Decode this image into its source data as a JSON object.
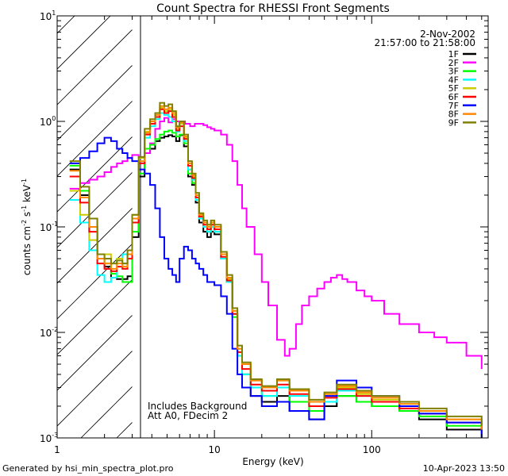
{
  "chart_data": {
    "type": "line",
    "title": "Count Spectra for RHESSI Front Segments",
    "xlabel": "Energy (keV)",
    "ylabel_parts": {
      "prefix": "counts cm",
      "exp1": "-2",
      "mid1": " s",
      "exp2": "-1",
      "mid2": " keV",
      "exp3": "-1"
    },
    "xscale": "log",
    "yscale": "log",
    "xlim": [
      1,
      550
    ],
    "ylim": [
      0.001,
      10
    ],
    "x_tick_labels": [
      {
        "value": 1,
        "label": "1"
      },
      {
        "value": 10,
        "label": "10"
      },
      {
        "value": 100,
        "label": "100"
      }
    ],
    "y_tick_labels": [
      {
        "value": 0.001,
        "base": "10",
        "exp": "-3"
      },
      {
        "value": 0.01,
        "base": "10",
        "exp": "-2"
      },
      {
        "value": 0.1,
        "base": "10",
        "exp": "-1"
      },
      {
        "value": 1,
        "base": "10",
        "exp": "0"
      },
      {
        "value": 10,
        "base": "10",
        "exp": "1"
      }
    ],
    "excluded_region": [
      1,
      3
    ],
    "date": "2-Nov-2002",
    "time_range": "21:57:00 to 21:58:00",
    "annotations": [
      "Includes Background",
      "Att A0, FDecim 2"
    ],
    "footer_left": "Generated by hsi_min_spectra_plot.pro",
    "footer_right": "10-Apr-2023 13:50",
    "series": [
      {
        "name": "1F",
        "color": "#000000",
        "x": [
          1.2,
          1.4,
          1.6,
          1.8,
          2.0,
          2.2,
          2.4,
          2.6,
          2.8,
          3.0,
          3.3,
          3.6,
          3.9,
          4.2,
          4.5,
          4.8,
          5.1,
          5.4,
          5.7,
          6.0,
          6.4,
          6.8,
          7.2,
          7.6,
          8.0,
          8.5,
          9.0,
          9.5,
          10,
          11,
          12,
          13,
          14,
          15,
          17,
          20,
          25,
          30,
          40,
          50,
          60,
          80,
          100,
          150,
          200,
          300,
          500
        ],
        "y": [
          0.35,
          0.2,
          0.1,
          0.05,
          0.042,
          0.033,
          0.032,
          0.032,
          0.034,
          0.08,
          0.3,
          0.5,
          0.55,
          0.65,
          0.7,
          0.72,
          0.74,
          0.72,
          0.65,
          0.74,
          0.58,
          0.3,
          0.25,
          0.17,
          0.11,
          0.09,
          0.08,
          0.09,
          0.085,
          0.05,
          0.03,
          0.015,
          0.006,
          0.004,
          0.0025,
          0.0022,
          0.0025,
          0.0018,
          0.0015,
          0.002,
          0.0025,
          0.0022,
          0.002,
          0.0018,
          0.0015,
          0.0012,
          0.001
        ]
      },
      {
        "name": "2F",
        "color": "#ff00ff",
        "x": [
          1.2,
          1.4,
          1.6,
          1.8,
          2.0,
          2.2,
          2.4,
          2.6,
          2.8,
          3.0,
          3.3,
          3.6,
          3.9,
          4.2,
          4.5,
          4.8,
          5.1,
          5.4,
          5.7,
          6.0,
          6.5,
          7.0,
          7.5,
          8.0,
          8.5,
          9.0,
          9.5,
          10,
          11,
          12,
          13,
          14,
          15,
          16,
          18,
          20,
          22,
          25,
          28,
          30,
          33,
          36,
          40,
          45,
          50,
          55,
          60,
          65,
          70,
          80,
          90,
          100,
          120,
          150,
          200,
          250,
          300,
          400,
          500
        ],
        "y": [
          0.23,
          0.26,
          0.28,
          0.3,
          0.33,
          0.37,
          0.4,
          0.42,
          0.45,
          0.48,
          0.46,
          0.5,
          0.62,
          0.85,
          1.0,
          1.08,
          0.98,
          1.05,
          1.0,
          1.0,
          0.95,
          0.9,
          0.95,
          0.95,
          0.92,
          0.88,
          0.85,
          0.82,
          0.75,
          0.6,
          0.42,
          0.25,
          0.15,
          0.1,
          0.055,
          0.03,
          0.018,
          0.0085,
          0.006,
          0.007,
          0.012,
          0.018,
          0.022,
          0.026,
          0.03,
          0.033,
          0.035,
          0.032,
          0.03,
          0.025,
          0.022,
          0.02,
          0.015,
          0.012,
          0.01,
          0.009,
          0.008,
          0.006,
          0.0045
        ]
      },
      {
        "name": "3F",
        "color": "#00ff00",
        "x": [
          1.2,
          1.4,
          1.6,
          1.8,
          2.0,
          2.2,
          2.4,
          2.6,
          2.8,
          3.0,
          3.3,
          3.6,
          3.9,
          4.2,
          4.5,
          4.8,
          5.1,
          5.4,
          5.7,
          6.0,
          6.4,
          6.8,
          7.2,
          7.6,
          8.0,
          8.5,
          9.0,
          9.5,
          10,
          11,
          12,
          13,
          14,
          15,
          17,
          20,
          25,
          30,
          40,
          50,
          60,
          80,
          100,
          150,
          200,
          300,
          500
        ],
        "y": [
          0.38,
          0.22,
          0.12,
          0.055,
          0.045,
          0.036,
          0.034,
          0.03,
          0.03,
          0.09,
          0.32,
          0.55,
          0.6,
          0.68,
          0.75,
          0.8,
          0.82,
          0.78,
          0.72,
          0.75,
          0.62,
          0.32,
          0.26,
          0.18,
          0.12,
          0.1,
          0.09,
          0.1,
          0.09,
          0.05,
          0.03,
          0.014,
          0.006,
          0.004,
          0.003,
          0.0025,
          0.003,
          0.0022,
          0.0018,
          0.0022,
          0.0025,
          0.0022,
          0.002,
          0.0018,
          0.0016,
          0.0013,
          0.0011
        ]
      },
      {
        "name": "4F",
        "color": "#00ffff",
        "x": [
          1.2,
          1.4,
          1.6,
          1.8,
          2.0,
          2.2,
          2.4,
          2.6,
          2.8,
          3.0,
          3.3,
          3.6,
          3.9,
          4.2,
          4.5,
          4.8,
          5.1,
          5.4,
          5.7,
          6.0,
          6.4,
          6.8,
          7.2,
          7.6,
          8.0,
          8.5,
          9.0,
          9.5,
          10,
          11,
          12,
          13,
          14,
          15,
          17,
          20,
          25,
          30,
          40,
          50,
          60,
          80,
          100,
          150,
          200,
          300,
          500
        ],
        "y": [
          0.18,
          0.11,
          0.06,
          0.035,
          0.03,
          0.033,
          0.05,
          0.055,
          0.06,
          0.12,
          0.42,
          0.7,
          0.9,
          1.05,
          1.2,
          1.15,
          1.1,
          1.0,
          0.8,
          0.9,
          0.65,
          0.35,
          0.28,
          0.18,
          0.12,
          0.1,
          0.09,
          0.1,
          0.09,
          0.05,
          0.03,
          0.015,
          0.006,
          0.004,
          0.003,
          0.0025,
          0.003,
          0.0025,
          0.002,
          0.0022,
          0.0028,
          0.0025,
          0.0022,
          0.002,
          0.0017,
          0.0014,
          0.0011
        ]
      },
      {
        "name": "5F",
        "color": "#cccc00",
        "x": [
          1.2,
          1.4,
          1.6,
          1.8,
          2.0,
          2.2,
          2.4,
          2.6,
          2.8,
          3.0,
          3.3,
          3.6,
          3.9,
          4.2,
          4.5,
          4.8,
          5.1,
          5.4,
          5.7,
          6.0,
          6.4,
          6.8,
          7.2,
          7.6,
          8.0,
          8.5,
          9.0,
          9.5,
          10,
          11,
          12,
          13,
          14,
          15,
          17,
          20,
          25,
          30,
          40,
          50,
          60,
          80,
          100,
          150,
          200,
          300,
          500
        ],
        "y": [
          0.22,
          0.13,
          0.075,
          0.05,
          0.055,
          0.045,
          0.05,
          0.045,
          0.06,
          0.13,
          0.45,
          0.8,
          1.0,
          1.2,
          1.35,
          1.25,
          1.3,
          1.15,
          0.85,
          0.95,
          0.7,
          0.4,
          0.3,
          0.2,
          0.13,
          0.11,
          0.1,
          0.11,
          0.1,
          0.055,
          0.032,
          0.016,
          0.007,
          0.005,
          0.0035,
          0.003,
          0.0035,
          0.0028,
          0.0022,
          0.0025,
          0.003,
          0.0026,
          0.0023,
          0.002,
          0.0018,
          0.0015,
          0.0012
        ]
      },
      {
        "name": "6F",
        "color": "#ff0000",
        "x": [
          1.2,
          1.4,
          1.6,
          1.8,
          2.0,
          2.2,
          2.4,
          2.6,
          2.8,
          3.0,
          3.3,
          3.6,
          3.9,
          4.2,
          4.5,
          4.8,
          5.1,
          5.4,
          5.7,
          6.0,
          6.4,
          6.8,
          7.2,
          7.6,
          8.0,
          8.5,
          9.0,
          9.5,
          10,
          11,
          12,
          13,
          14,
          15,
          17,
          20,
          25,
          30,
          40,
          50,
          60,
          80,
          100,
          150,
          200,
          300,
          500
        ],
        "y": [
          0.3,
          0.17,
          0.09,
          0.045,
          0.04,
          0.038,
          0.042,
          0.04,
          0.05,
          0.11,
          0.4,
          0.75,
          0.95,
          1.1,
          1.3,
          1.2,
          1.25,
          1.1,
          0.82,
          0.9,
          0.68,
          0.38,
          0.29,
          0.19,
          0.125,
          0.105,
          0.095,
          0.105,
          0.095,
          0.052,
          0.031,
          0.015,
          0.0065,
          0.0045,
          0.0032,
          0.0028,
          0.0032,
          0.0026,
          0.002,
          0.0024,
          0.0029,
          0.0025,
          0.0022,
          0.0019,
          0.0017,
          0.0014,
          0.0011
        ]
      },
      {
        "name": "7F",
        "color": "#0000ff",
        "x": [
          1.2,
          1.4,
          1.6,
          1.8,
          2.0,
          2.2,
          2.4,
          2.6,
          2.8,
          3.0,
          3.3,
          3.6,
          3.9,
          4.2,
          4.5,
          4.8,
          5.1,
          5.4,
          5.7,
          6.0,
          6.4,
          6.8,
          7.2,
          7.6,
          8.0,
          8.5,
          9.0,
          9.5,
          10,
          11,
          12,
          13,
          14,
          15,
          17,
          20,
          25,
          30,
          40,
          50,
          60,
          80,
          100,
          150,
          200,
          300,
          500
        ],
        "y": [
          0.4,
          0.45,
          0.52,
          0.62,
          0.7,
          0.65,
          0.55,
          0.5,
          0.45,
          0.42,
          0.35,
          0.32,
          0.25,
          0.15,
          0.08,
          0.05,
          0.04,
          0.035,
          0.03,
          0.05,
          0.065,
          0.06,
          0.05,
          0.045,
          0.04,
          0.035,
          0.03,
          0.03,
          0.028,
          0.022,
          0.015,
          0.007,
          0.004,
          0.003,
          0.0025,
          0.002,
          0.0022,
          0.0018,
          0.0015,
          0.0025,
          0.0035,
          0.003,
          0.0025,
          0.002,
          0.0017,
          0.0014,
          0.001
        ]
      },
      {
        "name": "8F",
        "color": "#ff8800",
        "x": [
          1.2,
          1.4,
          1.6,
          1.8,
          2.0,
          2.2,
          2.4,
          2.6,
          2.8,
          3.0,
          3.3,
          3.6,
          3.9,
          4.2,
          4.5,
          4.8,
          5.1,
          5.4,
          5.7,
          6.0,
          6.4,
          6.8,
          7.2,
          7.6,
          8.0,
          8.5,
          9.0,
          9.5,
          10,
          11,
          12,
          13,
          14,
          15,
          17,
          20,
          25,
          30,
          40,
          50,
          60,
          80,
          100,
          150,
          200,
          300,
          500
        ],
        "y": [
          0.34,
          0.19,
          0.1,
          0.05,
          0.045,
          0.04,
          0.045,
          0.042,
          0.055,
          0.12,
          0.42,
          0.78,
          1.0,
          1.15,
          1.4,
          1.3,
          1.35,
          1.2,
          0.88,
          0.98,
          0.72,
          0.4,
          0.31,
          0.2,
          0.13,
          0.11,
          0.1,
          0.11,
          0.1,
          0.055,
          0.033,
          0.016,
          0.007,
          0.005,
          0.0035,
          0.003,
          0.0035,
          0.0028,
          0.0022,
          0.0026,
          0.0031,
          0.0027,
          0.0024,
          0.0021,
          0.0018,
          0.0015,
          0.0012
        ]
      },
      {
        "name": "9F",
        "color": "#808000",
        "x": [
          1.2,
          1.4,
          1.6,
          1.8,
          2.0,
          2.2,
          2.4,
          2.6,
          2.8,
          3.0,
          3.3,
          3.6,
          3.9,
          4.2,
          4.5,
          4.8,
          5.1,
          5.4,
          5.7,
          6.0,
          6.4,
          6.8,
          7.2,
          7.6,
          8.0,
          8.5,
          9.0,
          9.5,
          10,
          11,
          12,
          13,
          14,
          15,
          17,
          20,
          25,
          30,
          40,
          50,
          60,
          80,
          100,
          150,
          200,
          300,
          500
        ],
        "y": [
          0.42,
          0.24,
          0.12,
          0.055,
          0.05,
          0.045,
          0.048,
          0.045,
          0.06,
          0.13,
          0.46,
          0.85,
          1.05,
          1.2,
          1.5,
          1.4,
          1.45,
          1.25,
          0.9,
          1.0,
          0.75,
          0.42,
          0.32,
          0.21,
          0.135,
          0.115,
          0.105,
          0.115,
          0.105,
          0.058,
          0.035,
          0.017,
          0.0075,
          0.0052,
          0.0036,
          0.0031,
          0.0036,
          0.0029,
          0.0023,
          0.0027,
          0.0032,
          0.0028,
          0.0025,
          0.0022,
          0.0019,
          0.0016,
          0.0013
        ]
      }
    ]
  }
}
